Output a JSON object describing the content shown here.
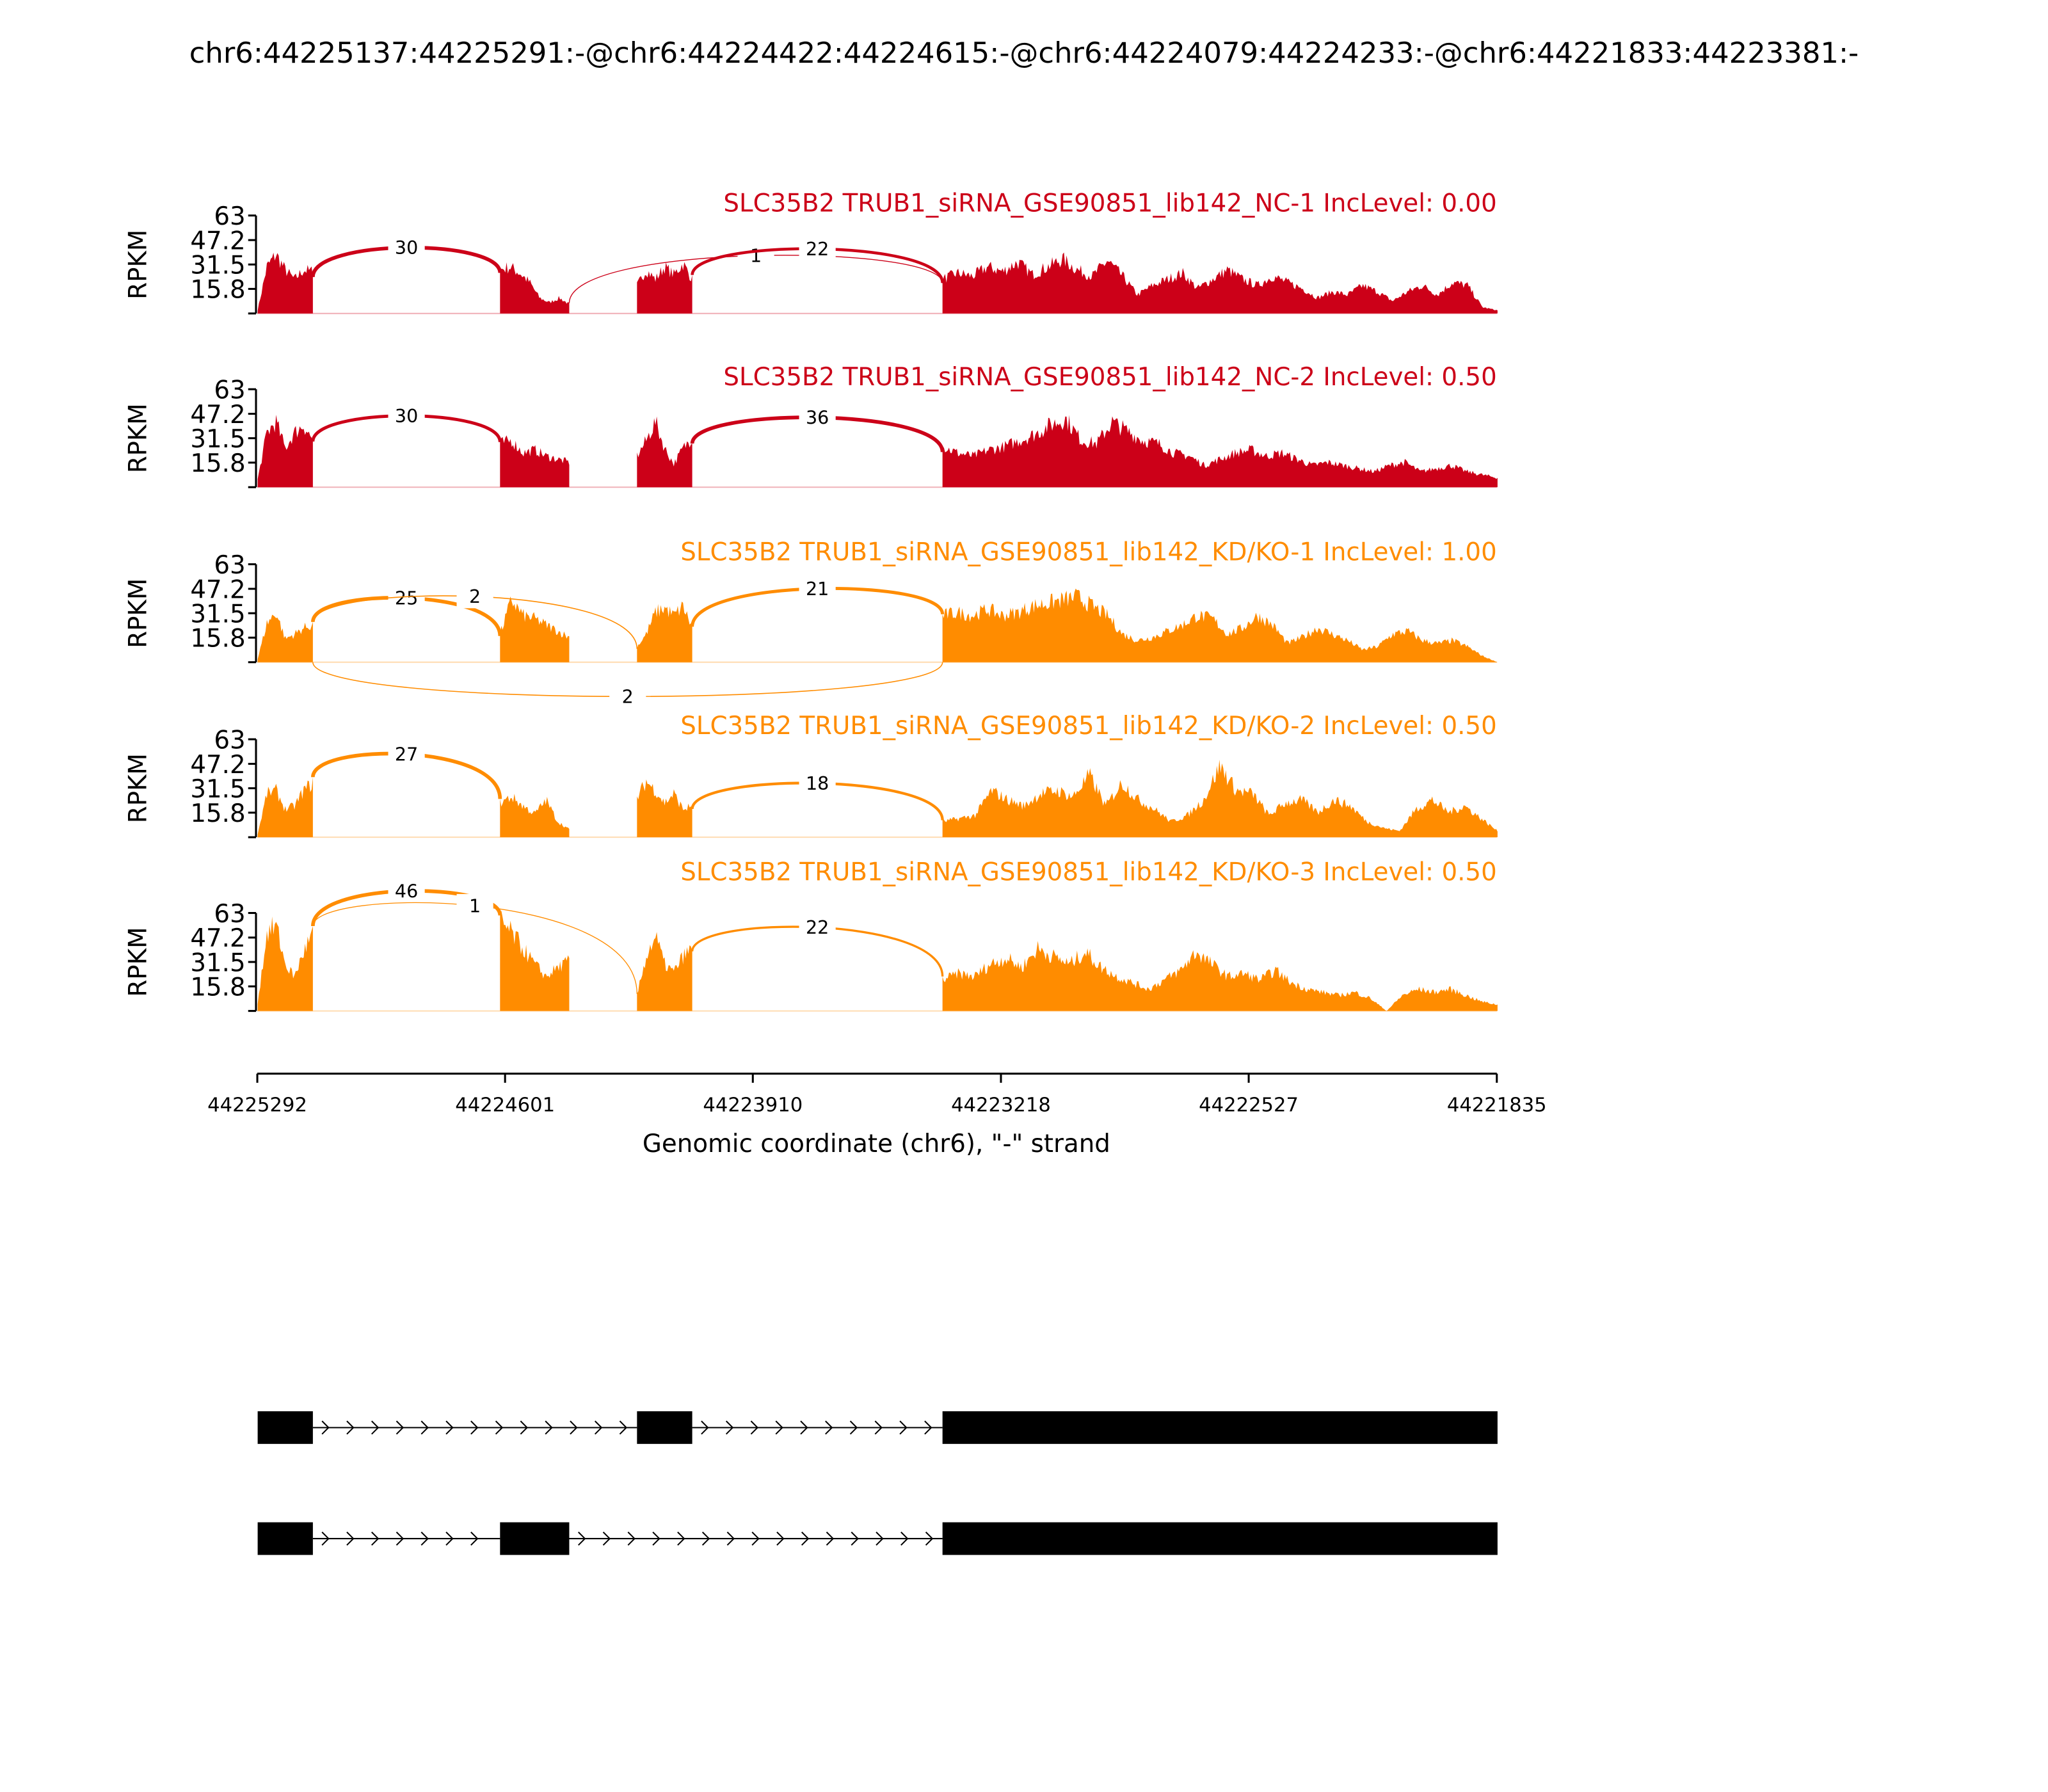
{
  "chart_data": {
    "type": "sashimi",
    "title": "chr6:44225137:44225291:-@chr6:44224422:44224615:-@chr6:44224079:44224233:-@chr6:44221833:44223381:-",
    "ylabel": "RPKM",
    "xlabel": "Genomic coordinate (chr6), \"-\" strand",
    "xlim": [
      44225292,
      44221835
    ],
    "ylim": [
      0,
      63
    ],
    "yticks": [
      "63",
      "47.2",
      "31.5",
      "15.8"
    ],
    "ytick_values": [
      63,
      47.2,
      31.5,
      15.8
    ],
    "xticks": [
      "44225292",
      "44224601",
      "44223910",
      "44223218",
      "44222527",
      "44221835"
    ],
    "colors": {
      "NC": "#cc0018",
      "KD": "#ff8c00"
    },
    "exons": [
      {
        "start": 44225291,
        "end": 44225137
      },
      {
        "start": 44224615,
        "end": 44224422
      },
      {
        "start": 44224233,
        "end": 44224079
      },
      {
        "start": 44223381,
        "end": 44221833
      }
    ],
    "samples": [
      {
        "label": "SLC35B2 TRUB1_siRNA_GSE90851_lib142_NC-1 IncLevel: 0.00",
        "color": "#cc0018",
        "coverage": [
          [
            2,
            30,
            38,
            28,
            22,
            28,
            27
          ],
          [
            28,
            30,
            26,
            20,
            10,
            7,
            10,
            6
          ],
          [
            18,
            28,
            22,
            30,
            25,
            32,
            22
          ],
          [
            22,
            26,
            24,
            30,
            27,
            33,
            25,
            30,
            35,
            28,
            24,
            34,
            24,
            12,
            18,
            22,
            26,
            16,
            22,
            28,
            22,
            18,
            24,
            20,
            16,
            10,
            14,
            12,
            18,
            14,
            8,
            14,
            18,
            12,
            20,
            18,
            4,
            2
          ]
        ],
        "junctions": [
          {
            "from": 0,
            "to": 1,
            "count": "30",
            "side": "above"
          },
          {
            "from": 1,
            "to": 3,
            "count": "1",
            "side": "above"
          },
          {
            "from": 2,
            "to": 3,
            "count": "22",
            "side": "above"
          }
        ]
      },
      {
        "label": "SLC35B2 TRUB1_siRNA_GSE90851_lib142_NC-2 IncLevel: 0.50",
        "color": "#cc0018",
        "coverage": [
          [
            5,
            35,
            42,
            25,
            35,
            40,
            30
          ],
          [
            28,
            30,
            22,
            24,
            20,
            18,
            16
          ],
          [
            20,
            30,
            42,
            25,
            15,
            25,
            32
          ],
          [
            26,
            22,
            20,
            24,
            26,
            30,
            34,
            40,
            44,
            30,
            28,
            42,
            36,
            30,
            28,
            22,
            20,
            14,
            18,
            22,
            24,
            20,
            22,
            18,
            14,
            16,
            14,
            12,
            10,
            14,
            16,
            10,
            12,
            14,
            10,
            8,
            6
          ]
        ],
        "junctions": [
          {
            "from": 0,
            "to": 1,
            "count": "30",
            "side": "above"
          },
          {
            "from": 2,
            "to": 3,
            "count": "36",
            "side": "above"
          }
        ]
      },
      {
        "label": "SLC35B2 TRUB1_siRNA_GSE90851_lib142_KD/KO-1 IncLevel: 1.00",
        "color": "#ff8c00",
        "coverage": [
          [
            2,
            25,
            32,
            15,
            18,
            22,
            24
          ],
          [
            18,
            40,
            30,
            28,
            24,
            20,
            16
          ],
          [
            10,
            18,
            32,
            35,
            30,
            36,
            22
          ],
          [
            30,
            32,
            30,
            34,
            30,
            32,
            36,
            38,
            40,
            42,
            36,
            30,
            18,
            14,
            16,
            20,
            24,
            30,
            28,
            18,
            22,
            30,
            24,
            12,
            16,
            22,
            18,
            14,
            8,
            10,
            18,
            20,
            14,
            12,
            14,
            10,
            4,
            0
          ]
        ],
        "junctions": [
          {
            "from": 0,
            "to": 1,
            "count": "25",
            "side": "above"
          },
          {
            "from": 0,
            "to": 2,
            "count": "2",
            "side": "above"
          },
          {
            "from": 2,
            "to": 3,
            "count": "21",
            "side": "above"
          },
          {
            "from": 0,
            "to": 3,
            "count": "2",
            "side": "below"
          }
        ]
      },
      {
        "label": "SLC35B2 TRUB1_siRNA_GSE90851_lib142_KD/KO-2 IncLevel: 0.50",
        "color": "#ff8c00",
        "coverage": [
          [
            2,
            28,
            30,
            18,
            20,
            30,
            35
          ],
          [
            22,
            26,
            20,
            15,
            24,
            10,
            5
          ],
          [
            25,
            36,
            30,
            22,
            28,
            18,
            20
          ],
          [
            10,
            12,
            14,
            30,
            24,
            20,
            28,
            30,
            26,
            40,
            20,
            35,
            24,
            18,
            10,
            14,
            24,
            46,
            30,
            28,
            14,
            22,
            24,
            16,
            24,
            20,
            10,
            6,
            4,
            18,
            24,
            16,
            20,
            12,
            4
          ]
        ],
        "junctions": [
          {
            "from": 0,
            "to": 1,
            "count": "27",
            "side": "above"
          },
          {
            "from": 2,
            "to": 3,
            "count": "18",
            "side": "above"
          }
        ]
      },
      {
        "label": "SLC35B2 TRUB1_siRNA_GSE90851_lib142_KD/KO-3 IncLevel: 0.50",
        "color": "#ff8c00",
        "coverage": [
          [
            5,
            50,
            55,
            30,
            22,
            38,
            50
          ],
          [
            58,
            50,
            40,
            30,
            22,
            28,
            32
          ],
          [
            10,
            35,
            48,
            30,
            25,
            35,
            40
          ],
          [
            20,
            24,
            22,
            30,
            34,
            28,
            40,
            35,
            30,
            38,
            28,
            22,
            18,
            14,
            20,
            26,
            38,
            30,
            22,
            24,
            20,
            26,
            18,
            14,
            12,
            10,
            12,
            8,
            0,
            10,
            14,
            12,
            14,
            10,
            6,
            4
          ]
        ],
        "junctions": [
          {
            "from": 0,
            "to": 1,
            "count": "46",
            "side": "above"
          },
          {
            "from": 0,
            "to": 2,
            "count": "1",
            "side": "above"
          },
          {
            "from": 2,
            "to": 3,
            "count": "22",
            "side": "above"
          }
        ]
      }
    ],
    "transcripts": [
      {
        "exons": [
          0,
          2,
          3
        ]
      },
      {
        "exons": [
          0,
          1,
          3
        ]
      }
    ]
  }
}
